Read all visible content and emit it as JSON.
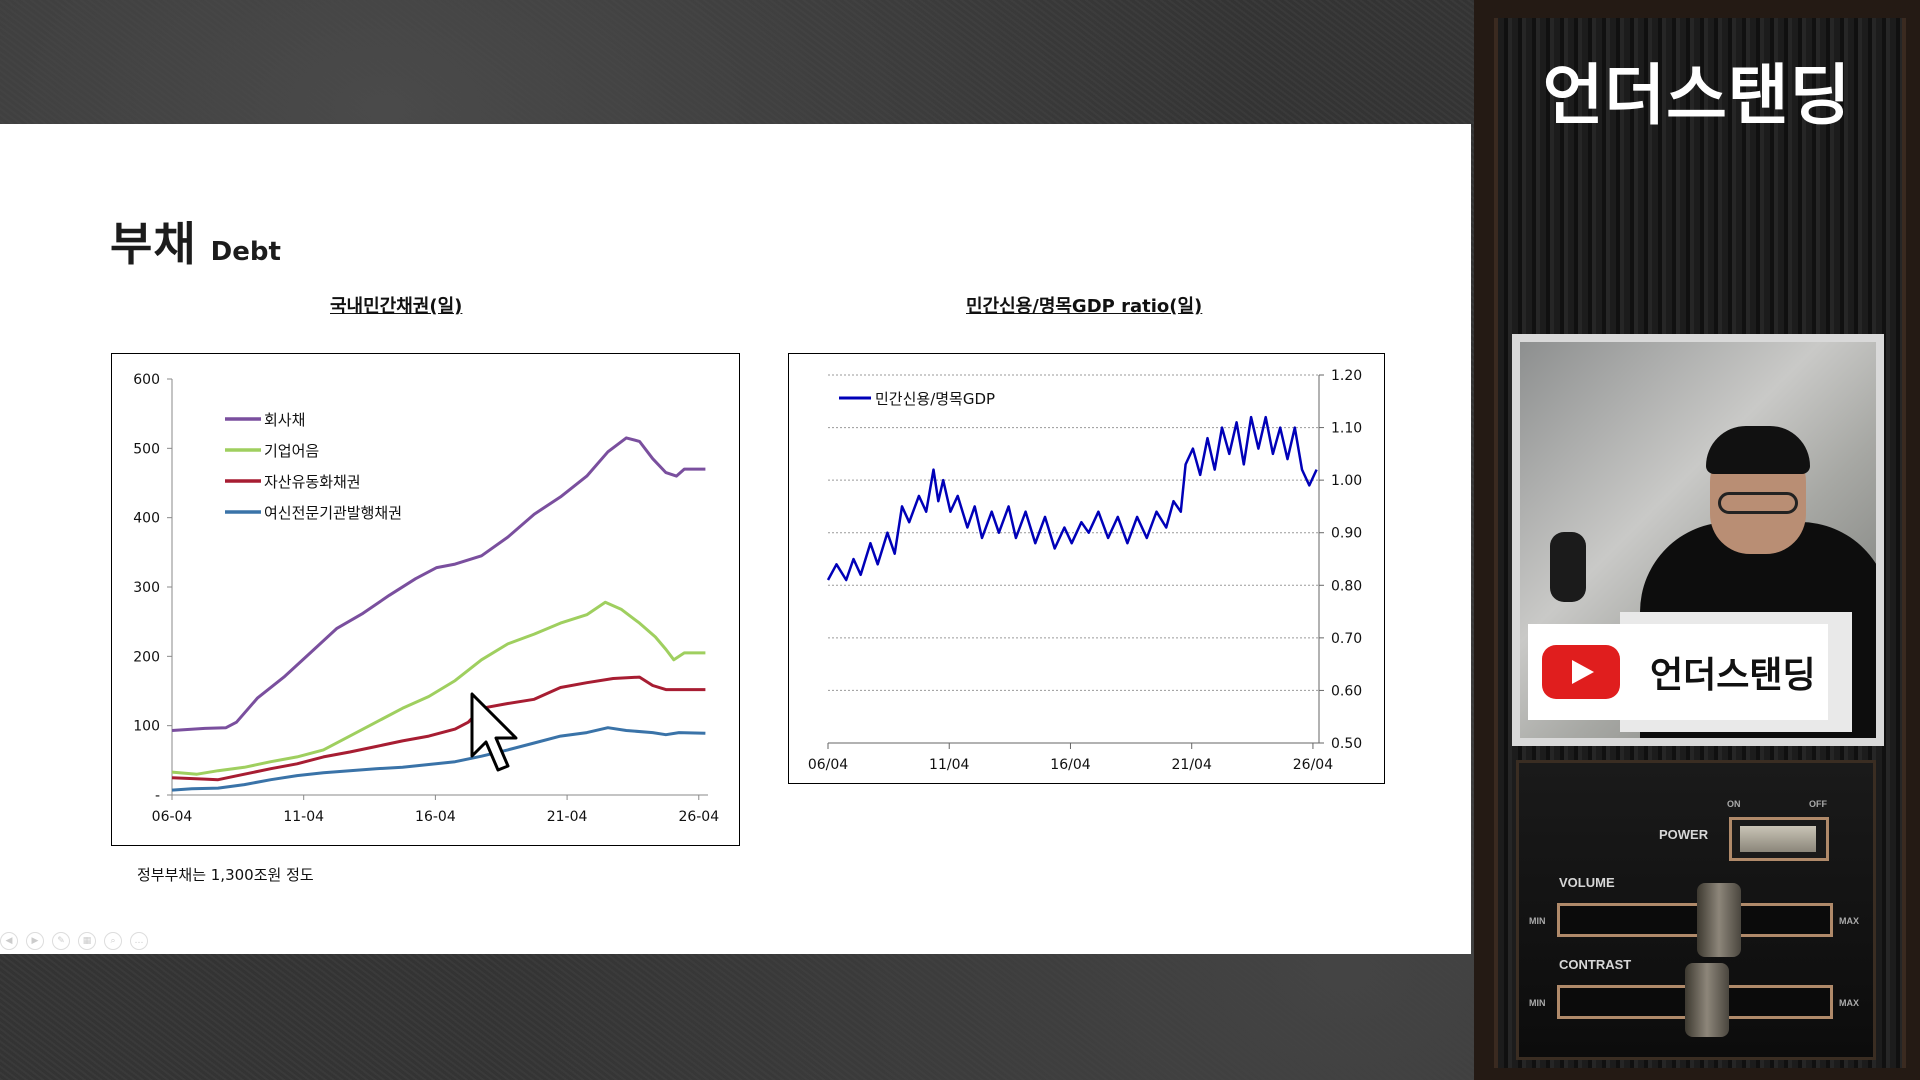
{
  "slide": {
    "title_main": "부채",
    "title_sub": "Debt",
    "note": "정부부채는 1,300조원 정도"
  },
  "brand": {
    "name": "언더스탠딩",
    "youtube_label": "언더스탠딩"
  },
  "control_panel": {
    "power": "POWER",
    "on": "ON",
    "off": "OFF",
    "volume": "VOLUME",
    "contrast": "CONTRAST",
    "min": "MIN",
    "max": "MAX"
  },
  "colors": {
    "corp_bond": "#7a4f9e",
    "cp": "#9fcf5f",
    "abs": "#a71d32",
    "card_bond": "#3a73a8",
    "ratio_line": "#0000b8",
    "brand_red": "#e01e1e"
  },
  "chart_data": [
    {
      "type": "line",
      "title": "국내민간채권(일)",
      "x_ticks": [
        "06-04",
        "11-04",
        "16-04",
        "21-04",
        "26-04"
      ],
      "x_range": [
        2006.25,
        2026.6
      ],
      "ylim": [
        0,
        600
      ],
      "y_ticks": [
        0,
        100,
        200,
        300,
        400,
        500,
        600
      ],
      "y_tick_labels": [
        "-",
        "100",
        "200",
        "300",
        "400",
        "500",
        "600"
      ],
      "legend": "top-left",
      "grid": false,
      "series": [
        {
          "name": "회사채",
          "points": [
            [
              2006.25,
              93
            ],
            [
              2007.5,
              96
            ],
            [
              2008.3,
              97
            ],
            [
              2008.7,
              105
            ],
            [
              2009.5,
              140
            ],
            [
              2010.5,
              170
            ],
            [
              2011.5,
              205
            ],
            [
              2012.5,
              240
            ],
            [
              2013.5,
              262
            ],
            [
              2014.5,
              288
            ],
            [
              2015.5,
              312
            ],
            [
              2016.3,
              328
            ],
            [
              2017.0,
              333
            ],
            [
              2018.0,
              345
            ],
            [
              2019.0,
              372
            ],
            [
              2020.0,
              405
            ],
            [
              2021.0,
              430
            ],
            [
              2022.0,
              460
            ],
            [
              2022.8,
              495
            ],
            [
              2023.5,
              515
            ],
            [
              2024.0,
              510
            ],
            [
              2024.5,
              485
            ],
            [
              2025.0,
              465
            ],
            [
              2025.4,
              460
            ],
            [
              2025.7,
              470
            ],
            [
              2026.5,
              470
            ]
          ]
        },
        {
          "name": "기업어음",
          "points": [
            [
              2006.25,
              33
            ],
            [
              2007.2,
              30
            ],
            [
              2008.0,
              35
            ],
            [
              2009.0,
              40
            ],
            [
              2010.0,
              48
            ],
            [
              2011.0,
              55
            ],
            [
              2012.0,
              65
            ],
            [
              2013.0,
              85
            ],
            [
              2014.0,
              105
            ],
            [
              2015.0,
              125
            ],
            [
              2016.0,
              142
            ],
            [
              2017.0,
              165
            ],
            [
              2018.0,
              195
            ],
            [
              2019.0,
              218
            ],
            [
              2020.0,
              232
            ],
            [
              2021.0,
              248
            ],
            [
              2022.0,
              260
            ],
            [
              2022.7,
              278
            ],
            [
              2023.3,
              268
            ],
            [
              2024.0,
              248
            ],
            [
              2024.6,
              228
            ],
            [
              2025.0,
              210
            ],
            [
              2025.3,
              195
            ],
            [
              2025.7,
              205
            ],
            [
              2026.5,
              205
            ]
          ]
        },
        {
          "name": "자산유동화채권",
          "points": [
            [
              2006.25,
              25
            ],
            [
              2007.5,
              23
            ],
            [
              2008.0,
              22
            ],
            [
              2009.0,
              30
            ],
            [
              2010.0,
              38
            ],
            [
              2011.0,
              45
            ],
            [
              2012.0,
              55
            ],
            [
              2013.0,
              62
            ],
            [
              2014.0,
              70
            ],
            [
              2015.0,
              78
            ],
            [
              2016.0,
              85
            ],
            [
              2017.0,
              95
            ],
            [
              2017.5,
              105
            ],
            [
              2018.0,
              125
            ],
            [
              2019.0,
              132
            ],
            [
              2020.0,
              138
            ],
            [
              2021.0,
              155
            ],
            [
              2022.0,
              162
            ],
            [
              2023.0,
              168
            ],
            [
              2024.0,
              170
            ],
            [
              2024.5,
              158
            ],
            [
              2025.0,
              152
            ],
            [
              2026.5,
              152
            ]
          ]
        },
        {
          "name": "여신전문기관발행채권",
          "points": [
            [
              2006.25,
              7
            ],
            [
              2007.0,
              9
            ],
            [
              2008.0,
              10
            ],
            [
              2009.0,
              15
            ],
            [
              2010.0,
              22
            ],
            [
              2011.0,
              28
            ],
            [
              2012.0,
              32
            ],
            [
              2013.0,
              35
            ],
            [
              2014.0,
              38
            ],
            [
              2015.0,
              40
            ],
            [
              2016.0,
              44
            ],
            [
              2017.0,
              48
            ],
            [
              2018.0,
              56
            ],
            [
              2019.0,
              65
            ],
            [
              2020.0,
              75
            ],
            [
              2021.0,
              85
            ],
            [
              2022.0,
              90
            ],
            [
              2022.8,
              97
            ],
            [
              2023.5,
              93
            ],
            [
              2024.5,
              90
            ],
            [
              2025.0,
              87
            ],
            [
              2025.5,
              90
            ],
            [
              2026.5,
              89
            ]
          ]
        }
      ]
    },
    {
      "type": "line",
      "title": "민간신용/명목GDP ratio(일)",
      "x_ticks": [
        "06/04",
        "11/04",
        "16/04",
        "21/04",
        "26/04"
      ],
      "x_range": [
        2006.25,
        2026.5
      ],
      "ylim": [
        0.5,
        1.2
      ],
      "y_ticks": [
        0.5,
        0.6,
        0.7,
        0.8,
        0.9,
        1.0,
        1.1,
        1.2
      ],
      "y_tick_labels": [
        "0.50",
        "0.60",
        "0.70",
        "0.80",
        "0.90",
        "1.00",
        "1.10",
        "1.20"
      ],
      "y_axis_side": "right",
      "legend": "top-left",
      "grid": true,
      "series": [
        {
          "name": "민간신용/명목GDP",
          "points": [
            [
              2006.25,
              0.81
            ],
            [
              2006.6,
              0.84
            ],
            [
              2007.0,
              0.81
            ],
            [
              2007.3,
              0.85
            ],
            [
              2007.6,
              0.82
            ],
            [
              2008.0,
              0.88
            ],
            [
              2008.3,
              0.84
            ],
            [
              2008.7,
              0.9
            ],
            [
              2009.0,
              0.86
            ],
            [
              2009.3,
              0.95
            ],
            [
              2009.6,
              0.92
            ],
            [
              2010.0,
              0.97
            ],
            [
              2010.3,
              0.94
            ],
            [
              2010.6,
              1.02
            ],
            [
              2010.8,
              0.96
            ],
            [
              2011.0,
              1.0
            ],
            [
              2011.3,
              0.94
            ],
            [
              2011.6,
              0.97
            ],
            [
              2012.0,
              0.91
            ],
            [
              2012.3,
              0.95
            ],
            [
              2012.6,
              0.89
            ],
            [
              2013.0,
              0.94
            ],
            [
              2013.3,
              0.9
            ],
            [
              2013.7,
              0.95
            ],
            [
              2014.0,
              0.89
            ],
            [
              2014.4,
              0.94
            ],
            [
              2014.8,
              0.88
            ],
            [
              2015.2,
              0.93
            ],
            [
              2015.6,
              0.87
            ],
            [
              2016.0,
              0.91
            ],
            [
              2016.3,
              0.88
            ],
            [
              2016.7,
              0.92
            ],
            [
              2017.0,
              0.9
            ],
            [
              2017.4,
              0.94
            ],
            [
              2017.8,
              0.89
            ],
            [
              2018.2,
              0.93
            ],
            [
              2018.6,
              0.88
            ],
            [
              2019.0,
              0.93
            ],
            [
              2019.4,
              0.89
            ],
            [
              2019.8,
              0.94
            ],
            [
              2020.2,
              0.91
            ],
            [
              2020.5,
              0.96
            ],
            [
              2020.8,
              0.94
            ],
            [
              2021.0,
              1.03
            ],
            [
              2021.3,
              1.06
            ],
            [
              2021.6,
              1.01
            ],
            [
              2021.9,
              1.08
            ],
            [
              2022.2,
              1.02
            ],
            [
              2022.5,
              1.1
            ],
            [
              2022.8,
              1.05
            ],
            [
              2023.1,
              1.11
            ],
            [
              2023.4,
              1.03
            ],
            [
              2023.7,
              1.12
            ],
            [
              2024.0,
              1.06
            ],
            [
              2024.3,
              1.12
            ],
            [
              2024.6,
              1.05
            ],
            [
              2024.9,
              1.1
            ],
            [
              2025.2,
              1.04
            ],
            [
              2025.5,
              1.1
            ],
            [
              2025.8,
              1.02
            ],
            [
              2026.1,
              0.99
            ],
            [
              2026.4,
              1.02
            ]
          ]
        }
      ]
    }
  ]
}
